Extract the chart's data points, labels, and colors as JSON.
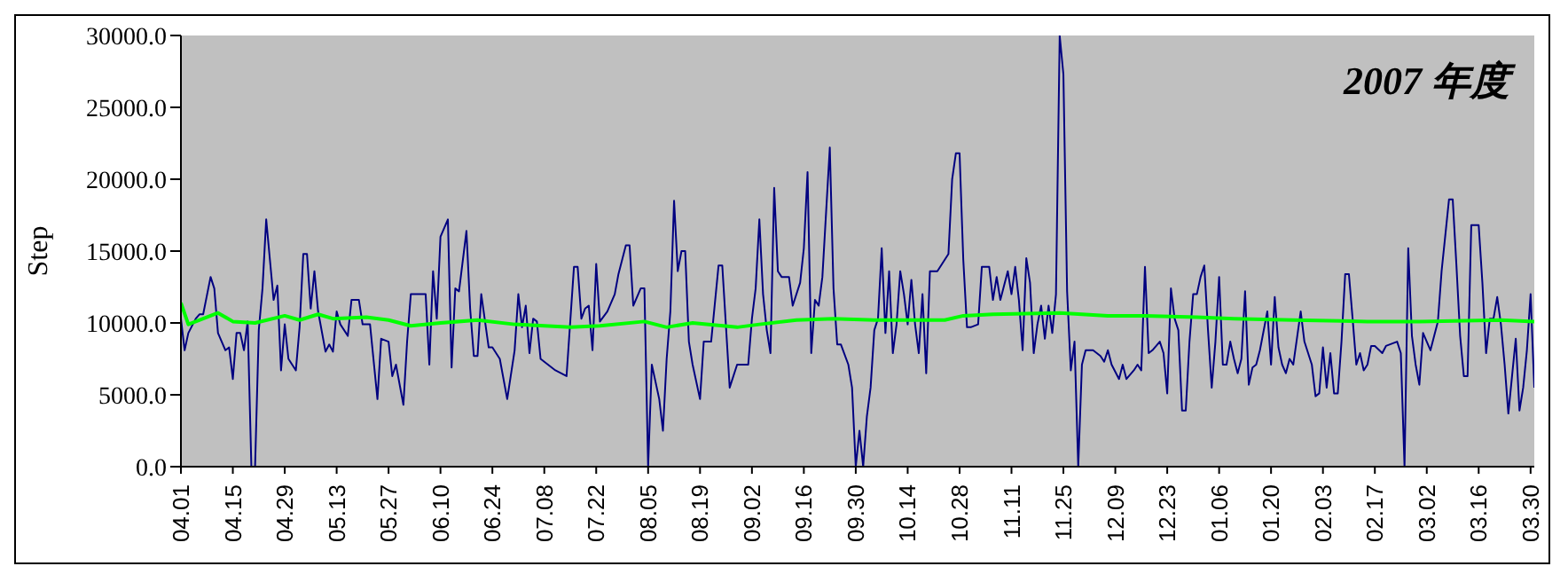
{
  "chart_data": {
    "type": "line",
    "ylabel": "Step",
    "annotations": [
      "2007 年度"
    ],
    "legend": false,
    "marker": "none",
    "line_style": "solid",
    "xlim": [
      "2007-04-01",
      "2008-03-31"
    ],
    "xticks": [
      {
        "value": "2007-04-01",
        "label": "04.01"
      },
      {
        "value": "2007-04-15",
        "label": "04.15"
      },
      {
        "value": "2007-04-29",
        "label": "04.29"
      },
      {
        "value": "2007-05-13",
        "label": "05.13"
      },
      {
        "value": "2007-05-27",
        "label": "05.27"
      },
      {
        "value": "2007-06-10",
        "label": "06.10"
      },
      {
        "value": "2007-06-24",
        "label": "06.24"
      },
      {
        "value": "2007-07-08",
        "label": "07.08"
      },
      {
        "value": "2007-07-22",
        "label": "07.22"
      },
      {
        "value": "2007-08-05",
        "label": "08.05"
      },
      {
        "value": "2007-08-19",
        "label": "08.19"
      },
      {
        "value": "2007-09-02",
        "label": "09.02"
      },
      {
        "value": "2007-09-16",
        "label": "09.16"
      },
      {
        "value": "2007-09-30",
        "label": "09.30"
      },
      {
        "value": "2007-10-14",
        "label": "10.14"
      },
      {
        "value": "2007-10-28",
        "label": "10.28"
      },
      {
        "value": "2007-11-11",
        "label": "11.11"
      },
      {
        "value": "2007-11-25",
        "label": "11.25"
      },
      {
        "value": "2007-12-09",
        "label": "12.09"
      },
      {
        "value": "2007-12-23",
        "label": "12.23"
      },
      {
        "value": "2008-01-06",
        "label": "01.06"
      },
      {
        "value": "2008-01-20",
        "label": "01.20"
      },
      {
        "value": "2008-02-03",
        "label": "02.03"
      },
      {
        "value": "2008-02-17",
        "label": "02.17"
      },
      {
        "value": "2008-03-02",
        "label": "03.02"
      },
      {
        "value": "2008-03-16",
        "label": "03.16"
      },
      {
        "value": "2008-03-30",
        "label": "03.30"
      }
    ],
    "ylim": [
      0,
      30000
    ],
    "yticks": [
      {
        "value": 0,
        "label": "0.0"
      },
      {
        "value": 5000,
        "label": "5000.0"
      },
      {
        "value": 10000,
        "label": "10000.0"
      },
      {
        "value": 15000,
        "label": "15000.0"
      },
      {
        "value": 20000,
        "label": "20000.0"
      },
      {
        "value": 25000,
        "label": "25000.0"
      },
      {
        "value": 30000,
        "label": "30000.0"
      }
    ],
    "series": [
      {
        "color": "#000080",
        "x": [
          "2007-04-01",
          "2007-04-02",
          "2007-04-03",
          "2007-04-05",
          "2007-04-06",
          "2007-04-07",
          "2007-04-09",
          "2007-04-10",
          "2007-04-11",
          "2007-04-13",
          "2007-04-14",
          "2007-04-15",
          "2007-04-16",
          "2007-04-17",
          "2007-04-18",
          "2007-04-19",
          "2007-04-20",
          "2007-04-21",
          "2007-04-22",
          "2007-04-23",
          "2007-04-24",
          "2007-04-25",
          "2007-04-26",
          "2007-04-27",
          "2007-04-28",
          "2007-04-29",
          "2007-04-30",
          "2007-05-02",
          "2007-05-03",
          "2007-05-04",
          "2007-05-05",
          "2007-05-06",
          "2007-05-07",
          "2007-05-08",
          "2007-05-10",
          "2007-05-11",
          "2007-05-12",
          "2007-05-13",
          "2007-05-14",
          "2007-05-16",
          "2007-05-17",
          "2007-05-19",
          "2007-05-20",
          "2007-05-22",
          "2007-05-24",
          "2007-05-25",
          "2007-05-27",
          "2007-05-28",
          "2007-05-29",
          "2007-05-31",
          "2007-06-01",
          "2007-06-02",
          "2007-06-04",
          "2007-06-06",
          "2007-06-07",
          "2007-06-08",
          "2007-06-09",
          "2007-06-10",
          "2007-06-12",
          "2007-06-13",
          "2007-06-14",
          "2007-06-15",
          "2007-06-17",
          "2007-06-18",
          "2007-06-19",
          "2007-06-20",
          "2007-06-21",
          "2007-06-23",
          "2007-06-24",
          "2007-06-26",
          "2007-06-28",
          "2007-06-30",
          "2007-07-01",
          "2007-07-02",
          "2007-07-03",
          "2007-07-04",
          "2007-07-05",
          "2007-07-06",
          "2007-07-07",
          "2007-07-09",
          "2007-07-11",
          "2007-07-14",
          "2007-07-15",
          "2007-07-16",
          "2007-07-17",
          "2007-07-18",
          "2007-07-19",
          "2007-07-20",
          "2007-07-21",
          "2007-07-22",
          "2007-07-23",
          "2007-07-25",
          "2007-07-27",
          "2007-07-28",
          "2007-07-30",
          "2007-07-31",
          "2007-08-01",
          "2007-08-03",
          "2007-08-04",
          "2007-08-05",
          "2007-08-06",
          "2007-08-08",
          "2007-08-09",
          "2007-08-10",
          "2007-08-11",
          "2007-08-12",
          "2007-08-13",
          "2007-08-14",
          "2007-08-15",
          "2007-08-16",
          "2007-08-17",
          "2007-08-19",
          "2007-08-20",
          "2007-08-22",
          "2007-08-24",
          "2007-08-25",
          "2007-08-27",
          "2007-08-29",
          "2007-09-01",
          "2007-09-02",
          "2007-09-03",
          "2007-09-04",
          "2007-09-05",
          "2007-09-06",
          "2007-09-07",
          "2007-09-08",
          "2007-09-09",
          "2007-09-10",
          "2007-09-12",
          "2007-09-13",
          "2007-09-15",
          "2007-09-16",
          "2007-09-17",
          "2007-09-18",
          "2007-09-19",
          "2007-09-20",
          "2007-09-21",
          "2007-09-23",
          "2007-09-24",
          "2007-09-25",
          "2007-09-26",
          "2007-09-28",
          "2007-09-29",
          "2007-09-30",
          "2007-10-01",
          "2007-10-02",
          "2007-10-03",
          "2007-10-04",
          "2007-10-05",
          "2007-10-06",
          "2007-10-07",
          "2007-10-08",
          "2007-10-09",
          "2007-10-10",
          "2007-10-11",
          "2007-10-12",
          "2007-10-13",
          "2007-10-14",
          "2007-10-15",
          "2007-10-16",
          "2007-10-17",
          "2007-10-18",
          "2007-10-19",
          "2007-10-20",
          "2007-10-22",
          "2007-10-24",
          "2007-10-25",
          "2007-10-26",
          "2007-10-27",
          "2007-10-28",
          "2007-10-29",
          "2007-10-30",
          "2007-10-31",
          "2007-11-02",
          "2007-11-03",
          "2007-11-05",
          "2007-11-06",
          "2007-11-07",
          "2007-11-08",
          "2007-11-10",
          "2007-11-11",
          "2007-11-12",
          "2007-11-13",
          "2007-11-14",
          "2007-11-15",
          "2007-11-16",
          "2007-11-17",
          "2007-11-18",
          "2007-11-19",
          "2007-11-20",
          "2007-11-21",
          "2007-11-22",
          "2007-11-23",
          "2007-11-24",
          "2007-11-25",
          "2007-11-26",
          "2007-11-27",
          "2007-11-28",
          "2007-11-29",
          "2007-11-30",
          "2007-12-01",
          "2007-12-03",
          "2007-12-05",
          "2007-12-06",
          "2007-12-07",
          "2007-12-08",
          "2007-12-10",
          "2007-12-11",
          "2007-12-12",
          "2007-12-14",
          "2007-12-15",
          "2007-12-16",
          "2007-12-17",
          "2007-12-18",
          "2007-12-19",
          "2007-12-21",
          "2007-12-22",
          "2007-12-23",
          "2007-12-24",
          "2007-12-25",
          "2007-12-26",
          "2007-12-27",
          "2007-12-28",
          "2007-12-29",
          "2007-12-30",
          "2007-12-31",
          "2008-01-01",
          "2008-01-02",
          "2008-01-03",
          "2008-01-04",
          "2008-01-05",
          "2008-01-06",
          "2008-01-07",
          "2008-01-08",
          "2008-01-09",
          "2008-01-10",
          "2008-01-11",
          "2008-01-12",
          "2008-01-13",
          "2008-01-14",
          "2008-01-15",
          "2008-01-16",
          "2008-01-17",
          "2008-01-19",
          "2008-01-20",
          "2008-01-21",
          "2008-01-22",
          "2008-01-23",
          "2008-01-24",
          "2008-01-25",
          "2008-01-26",
          "2008-01-28",
          "2008-01-29",
          "2008-01-31",
          "2008-02-01",
          "2008-02-02",
          "2008-02-03",
          "2008-02-04",
          "2008-02-05",
          "2008-02-06",
          "2008-02-07",
          "2008-02-08",
          "2008-02-09",
          "2008-02-10",
          "2008-02-11",
          "2008-02-12",
          "2008-02-13",
          "2008-02-14",
          "2008-02-15",
          "2008-02-16",
          "2008-02-17",
          "2008-02-19",
          "2008-02-20",
          "2008-02-23",
          "2008-02-24",
          "2008-02-25",
          "2008-02-26",
          "2008-02-27",
          "2008-02-28",
          "2008-02-29",
          "2008-03-01",
          "2008-03-03",
          "2008-03-04",
          "2008-03-05",
          "2008-03-06",
          "2008-03-08",
          "2008-03-09",
          "2008-03-10",
          "2008-03-11",
          "2008-03-12",
          "2008-03-13",
          "2008-03-14",
          "2008-03-16",
          "2008-03-17",
          "2008-03-18",
          "2008-03-19",
          "2008-03-20",
          "2008-03-21",
          "2008-03-22",
          "2008-03-23",
          "2008-03-24",
          "2008-03-25",
          "2008-03-26",
          "2008-03-27",
          "2008-03-28",
          "2008-03-29",
          "2008-03-30",
          "2008-03-31"
        ],
        "values": [
          10300,
          8100,
          9300,
          10300,
          10600,
          10600,
          13200,
          12400,
          9300,
          8100,
          8300,
          6100,
          9300,
          9300,
          8100,
          10100,
          0,
          0,
          9500,
          12400,
          17200,
          14400,
          11600,
          12600,
          6700,
          9900,
          7500,
          6700,
          9700,
          14800,
          14800,
          11000,
          13600,
          10800,
          8000,
          8500,
          8000,
          10800,
          9900,
          9100,
          11600,
          11600,
          9900,
          9900,
          4700,
          8900,
          8700,
          6300,
          7100,
          4300,
          8700,
          12000,
          12000,
          12000,
          7100,
          13600,
          10300,
          16000,
          17200,
          6900,
          12400,
          12200,
          16400,
          11000,
          7700,
          7700,
          12000,
          8300,
          8300,
          7500,
          4700,
          8100,
          12000,
          9700,
          11200,
          7900,
          10300,
          10100,
          7500,
          7100,
          6700,
          6300,
          10100,
          13900,
          13900,
          10300,
          11000,
          11200,
          8100,
          14100,
          10100,
          10800,
          12000,
          13400,
          15400,
          15400,
          11200,
          12400,
          12400,
          0,
          7100,
          4700,
          2500,
          7500,
          10800,
          18500,
          13600,
          15000,
          15000,
          8700,
          7100,
          4700,
          8700,
          8700,
          14000,
          14000,
          5500,
          7100,
          7100,
          10300,
          12400,
          17200,
          12000,
          9500,
          7900,
          19400,
          13600,
          13200,
          13200,
          11200,
          12800,
          15200,
          20500,
          7900,
          11600,
          11200,
          13200,
          22200,
          12400,
          8500,
          8500,
          7100,
          5500,
          0,
          2500,
          0,
          3500,
          5500,
          9500,
          10300,
          15200,
          9300,
          13600,
          7900,
          9900,
          13600,
          12000,
          9900,
          13000,
          9900,
          7900,
          12000,
          6500,
          13600,
          13600,
          14400,
          14800,
          20000,
          21800,
          21800,
          14400,
          9700,
          9700,
          9900,
          13900,
          13900,
          11600,
          13200,
          11600,
          13600,
          12000,
          13900,
          11600,
          8100,
          14500,
          12800,
          7900,
          9900,
          11200,
          8900,
          11200,
          9300,
          12000,
          30000,
          27300,
          12200,
          6700,
          8700,
          0,
          7100,
          8100,
          8100,
          7700,
          7300,
          8100,
          7100,
          6100,
          7100,
          6100,
          6700,
          7100,
          6700,
          13900,
          7900,
          8100,
          8700,
          7900,
          5100,
          12400,
          10300,
          9500,
          3900,
          3900,
          8700,
          12000,
          12000,
          13200,
          14000,
          9500,
          5500,
          8700,
          13200,
          7100,
          7100,
          8700,
          7500,
          6500,
          7500,
          12200,
          5700,
          6900,
          7100,
          8100,
          10800,
          7100,
          11800,
          8300,
          7100,
          6500,
          7500,
          7100,
          10800,
          8700,
          7100,
          4900,
          5100,
          8300,
          5500,
          7900,
          5100,
          5100,
          8700,
          13400,
          13400,
          10300,
          7100,
          7900,
          6700,
          7100,
          8400,
          8400,
          7900,
          8400,
          8700,
          7900,
          0,
          15200,
          9100,
          7100,
          5700,
          9300,
          8100,
          9100,
          10100,
          13600,
          18600,
          18600,
          14000,
          9100,
          6300,
          6300,
          16800,
          16800,
          12800,
          7900,
          10300,
          10300,
          11800,
          9900,
          7100,
          3700,
          6300,
          8900,
          3900,
          5500,
          8100,
          12000,
          5500
        ]
      },
      {
        "color": "#00ff00",
        "x": [
          "2007-04-01",
          "2007-04-03",
          "2007-04-07",
          "2007-04-11",
          "2007-04-15",
          "2007-04-21",
          "2007-04-29",
          "2007-05-03",
          "2007-05-08",
          "2007-05-12",
          "2007-05-21",
          "2007-05-27",
          "2007-06-02",
          "2007-06-10",
          "2007-06-20",
          "2007-06-30",
          "2007-07-15",
          "2007-07-23",
          "2007-08-04",
          "2007-08-10",
          "2007-08-17",
          "2007-08-29",
          "2007-09-04",
          "2007-09-14",
          "2007-09-24",
          "2007-10-05",
          "2007-10-24",
          "2007-10-29",
          "2007-11-06",
          "2007-11-24",
          "2007-12-07",
          "2007-12-17",
          "2007-12-31",
          "2008-01-10",
          "2008-01-26",
          "2008-02-15",
          "2008-02-29",
          "2008-03-22",
          "2008-03-31"
        ],
        "values": [
          11400,
          9900,
          10300,
          10700,
          10100,
          10000,
          10500,
          10200,
          10600,
          10300,
          10400,
          10200,
          9800,
          10000,
          10200,
          9900,
          9700,
          9800,
          10100,
          9700,
          10000,
          9700,
          9900,
          10200,
          10300,
          10200,
          10200,
          10500,
          10600,
          10700,
          10500,
          10500,
          10400,
          10300,
          10200,
          10100,
          10100,
          10200,
          10100
        ]
      }
    ]
  }
}
